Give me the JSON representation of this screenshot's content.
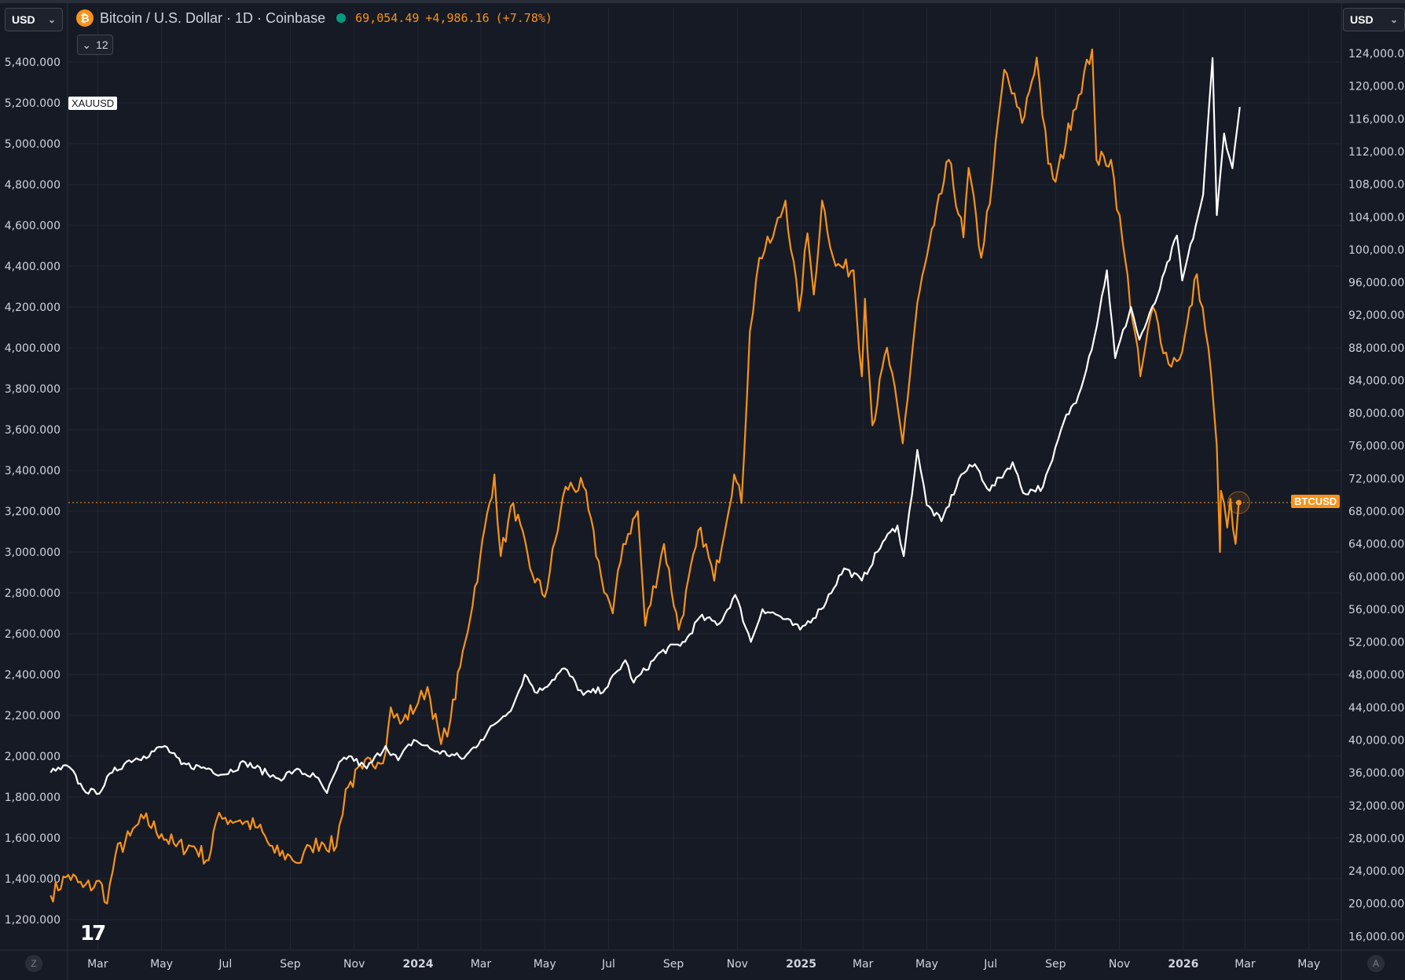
{
  "header": {
    "left_currency": "USD",
    "right_currency": "USD",
    "symbol_title": "Bitcoin / U.S. Dollar · 1D · Coinbase",
    "btc_glyph": "₿",
    "last_price": "69,054.49",
    "change": "+4,986.16",
    "change_pct": "(+7.78%)",
    "collapse_count": "12",
    "collapse_glyph": "⌄"
  },
  "corners": {
    "left": "Z",
    "right": "A"
  },
  "logo": "17",
  "colors": {
    "background": "#161a25",
    "grid": "#262a36",
    "btc": "#f7931a",
    "gold": "#ffffff",
    "axis_text": "#d1d4dc"
  },
  "chart_data": {
    "type": "line",
    "series": [
      {
        "name": "BTCUSD",
        "axis": "right",
        "color": "#f7931a",
        "points": [
          [
            "2023-01-15",
            21000
          ],
          [
            "2023-02-01",
            23500
          ],
          [
            "2023-02-15",
            22000
          ],
          [
            "2023-03-05",
            22400
          ],
          [
            "2023-03-10",
            20000
          ],
          [
            "2023-03-18",
            26000
          ],
          [
            "2023-04-01",
            28300
          ],
          [
            "2023-04-14",
            30400
          ],
          [
            "2023-05-01",
            28500
          ],
          [
            "2023-05-15",
            27000
          ],
          [
            "2023-06-01",
            27000
          ],
          [
            "2023-06-15",
            25300
          ],
          [
            "2023-06-22",
            30000
          ],
          [
            "2023-07-01",
            30500
          ],
          [
            "2023-07-15",
            30200
          ],
          [
            "2023-08-01",
            29300
          ],
          [
            "2023-08-17",
            26200
          ],
          [
            "2023-09-01",
            25800
          ],
          [
            "2023-09-11",
            25000
          ],
          [
            "2023-09-20",
            27000
          ],
          [
            "2023-10-01",
            27500
          ],
          [
            "2023-10-15",
            27000
          ],
          [
            "2023-10-24",
            34000
          ],
          [
            "2023-11-09",
            36500
          ],
          [
            "2023-12-01",
            38500
          ],
          [
            "2023-12-06",
            44000
          ],
          [
            "2023-12-15",
            42000
          ],
          [
            "2024-01-01",
            44500
          ],
          [
            "2024-01-10",
            46500
          ],
          [
            "2024-01-23",
            39500
          ],
          [
            "2024-02-01",
            42500
          ],
          [
            "2024-02-15",
            52000
          ],
          [
            "2024-02-29",
            62000
          ],
          [
            "2024-03-14",
            72500
          ],
          [
            "2024-03-20",
            62500
          ],
          [
            "2024-04-01",
            69000
          ],
          [
            "2024-04-17",
            61000
          ],
          [
            "2024-05-01",
            57500
          ],
          [
            "2024-05-21",
            71000
          ],
          [
            "2024-06-07",
            71000
          ],
          [
            "2024-06-24",
            60000
          ],
          [
            "2024-07-05",
            55500
          ],
          [
            "2024-07-15",
            64000
          ],
          [
            "2024-07-29",
            68000
          ],
          [
            "2024-08-05",
            54000
          ],
          [
            "2024-08-23",
            64000
          ],
          [
            "2024-09-06",
            53500
          ],
          [
            "2024-09-27",
            66000
          ],
          [
            "2024-10-10",
            59500
          ],
          [
            "2024-10-29",
            72500
          ],
          [
            "2024-11-05",
            69000
          ],
          [
            "2024-11-13",
            90000
          ],
          [
            "2024-11-22",
            99000
          ],
          [
            "2024-12-05",
            101500
          ],
          [
            "2024-12-17",
            106000
          ],
          [
            "2024-12-30",
            92500
          ],
          [
            "2025-01-07",
            102000
          ],
          [
            "2025-01-13",
            94500
          ],
          [
            "2025-01-21",
            106000
          ],
          [
            "2025-02-03",
            98000
          ],
          [
            "2025-02-20",
            97500
          ],
          [
            "2025-02-28",
            84500
          ],
          [
            "2025-03-03",
            94000
          ],
          [
            "2025-03-10",
            78500
          ],
          [
            "2025-03-24",
            88000
          ],
          [
            "2025-04-08",
            76300
          ],
          [
            "2025-04-22",
            93500
          ],
          [
            "2025-05-08",
            103000
          ],
          [
            "2025-05-22",
            111000
          ],
          [
            "2025-06-05",
            101500
          ],
          [
            "2025-06-10",
            110000
          ],
          [
            "2025-06-22",
            99000
          ],
          [
            "2025-07-03",
            109000
          ],
          [
            "2025-07-14",
            122000
          ],
          [
            "2025-07-31",
            115500
          ],
          [
            "2025-08-14",
            123500
          ],
          [
            "2025-08-25",
            110500
          ],
          [
            "2025-09-01",
            108300
          ],
          [
            "2025-09-18",
            117000
          ],
          [
            "2025-10-06",
            124500
          ],
          [
            "2025-10-10",
            111000
          ],
          [
            "2025-10-24",
            111000
          ],
          [
            "2025-11-04",
            101000
          ],
          [
            "2025-11-21",
            84500
          ],
          [
            "2025-12-03",
            93000
          ],
          [
            "2025-12-18",
            86000
          ],
          [
            "2025-12-31",
            87500
          ],
          [
            "2026-01-14",
            97000
          ],
          [
            "2026-01-25",
            88000
          ],
          [
            "2026-02-02",
            76000
          ],
          [
            "2026-02-05",
            63000
          ],
          [
            "2026-02-06",
            70500
          ],
          [
            "2026-02-12",
            66000
          ],
          [
            "2026-02-15",
            69500
          ],
          [
            "2026-02-20",
            64000
          ],
          [
            "2026-02-23",
            69054
          ]
        ]
      },
      {
        "name": "XAUUSD",
        "axis": "left",
        "color": "#ffffff",
        "points": [
          [
            "2023-01-15",
            1920
          ],
          [
            "2023-02-01",
            1950
          ],
          [
            "2023-02-15",
            1840
          ],
          [
            "2023-02-28",
            1815
          ],
          [
            "2023-03-15",
            1920
          ],
          [
            "2023-03-31",
            1980
          ],
          [
            "2023-04-14",
            2000
          ],
          [
            "2023-05-04",
            2050
          ],
          [
            "2023-05-20",
            1960
          ],
          [
            "2023-06-15",
            1940
          ],
          [
            "2023-06-29",
            1910
          ],
          [
            "2023-07-20",
            1970
          ],
          [
            "2023-08-10",
            1915
          ],
          [
            "2023-08-21",
            1890
          ],
          [
            "2023-09-05",
            1930
          ],
          [
            "2023-09-25",
            1900
          ],
          [
            "2023-10-06",
            1820
          ],
          [
            "2023-10-20",
            1980
          ],
          [
            "2023-10-27",
            2000
          ],
          [
            "2023-11-13",
            1940
          ],
          [
            "2023-12-01",
            2050
          ],
          [
            "2023-12-13",
            1980
          ],
          [
            "2023-12-28",
            2080
          ],
          [
            "2024-01-15",
            2030
          ],
          [
            "2024-02-14",
            1990
          ],
          [
            "2024-03-01",
            2080
          ],
          [
            "2024-03-15",
            2160
          ],
          [
            "2024-04-01",
            2250
          ],
          [
            "2024-04-12",
            2400
          ],
          [
            "2024-04-24",
            2310
          ],
          [
            "2024-05-20",
            2430
          ],
          [
            "2024-06-07",
            2300
          ],
          [
            "2024-06-28",
            2330
          ],
          [
            "2024-07-17",
            2470
          ],
          [
            "2024-07-25",
            2360
          ],
          [
            "2024-08-20",
            2510
          ],
          [
            "2024-09-12",
            2560
          ],
          [
            "2024-09-26",
            2680
          ],
          [
            "2024-10-15",
            2650
          ],
          [
            "2024-10-30",
            2790
          ],
          [
            "2024-11-14",
            2560
          ],
          [
            "2024-11-25",
            2720
          ],
          [
            "2024-12-10",
            2690
          ],
          [
            "2024-12-31",
            2620
          ],
          [
            "2025-01-20",
            2720
          ],
          [
            "2025-02-11",
            2920
          ],
          [
            "2025-02-28",
            2860
          ],
          [
            "2025-03-20",
            3050
          ],
          [
            "2025-04-03",
            3130
          ],
          [
            "2025-04-09",
            2980
          ],
          [
            "2025-04-22",
            3500
          ],
          [
            "2025-05-01",
            3230
          ],
          [
            "2025-05-15",
            3150
          ],
          [
            "2025-06-03",
            3380
          ],
          [
            "2025-06-16",
            3430
          ],
          [
            "2025-06-30",
            3300
          ],
          [
            "2025-07-22",
            3440
          ],
          [
            "2025-08-01",
            3290
          ],
          [
            "2025-08-20",
            3320
          ],
          [
            "2025-08-29",
            3450
          ],
          [
            "2025-09-09",
            3640
          ],
          [
            "2025-09-23",
            3770
          ],
          [
            "2025-10-08",
            4050
          ],
          [
            "2025-10-20",
            4380
          ],
          [
            "2025-10-28",
            3950
          ],
          [
            "2025-11-12",
            4200
          ],
          [
            "2025-11-20",
            4040
          ],
          [
            "2025-12-05",
            4220
          ],
          [
            "2025-12-26",
            4550
          ],
          [
            "2025-12-31",
            4330
          ],
          [
            "2026-01-13",
            4600
          ],
          [
            "2026-01-20",
            4750
          ],
          [
            "2026-01-29",
            5420
          ],
          [
            "2026-02-02",
            4650
          ],
          [
            "2026-02-09",
            5050
          ],
          [
            "2026-02-17",
            4880
          ],
          [
            "2026-02-24",
            5180
          ]
        ]
      }
    ],
    "left_axis": {
      "ylim": [
        1050,
        5550
      ],
      "ticks": [
        "5,400.000",
        "5,200.000",
        "5,000.000",
        "4,800.000",
        "4,600.000",
        "4,400.000",
        "4,200.000",
        "4,000.000",
        "3,800.000",
        "3,600.000",
        "3,400.000",
        "3,200.000",
        "3,000.000",
        "2,800.000",
        "2,600.000",
        "2,400.000",
        "2,200.000",
        "2,000.000",
        "1,800.000",
        "1,600.000",
        "1,400.000",
        "1,200.000"
      ]
    },
    "right_axis": {
      "ylim": [
        14300,
        126700
      ],
      "ticks": [
        "124,000.00",
        "120,000.00",
        "116,000.00",
        "112,000.00",
        "108,000.00",
        "104,000.00",
        "100,000.00",
        "96,000.00",
        "92,000.00",
        "88,000.00",
        "84,000.00",
        "80,000.00",
        "76,000.00",
        "72,000.00",
        "68,000.00",
        "64,000.00",
        "60,000.00",
        "56,000.00",
        "52,000.00",
        "48,000.00",
        "44,000.00",
        "40,000.00",
        "36,000.00",
        "32,000.00",
        "28,000.00",
        "24,000.00",
        "20,000.00",
        "16,000.00"
      ]
    },
    "x_axis": {
      "range": [
        "2023-02-01",
        "2026-06-01"
      ],
      "ticks": [
        [
          "2023-03-01",
          "Mar"
        ],
        [
          "2023-05-01",
          "May"
        ],
        [
          "2023-07-01",
          "Jul"
        ],
        [
          "2023-09-01",
          "Sep"
        ],
        [
          "2023-11-01",
          "Nov"
        ],
        [
          "2024-01-01",
          "2024"
        ],
        [
          "2024-03-01",
          "Mar"
        ],
        [
          "2024-05-01",
          "May"
        ],
        [
          "2024-07-01",
          "Jul"
        ],
        [
          "2024-09-01",
          "Sep"
        ],
        [
          "2024-11-01",
          "Nov"
        ],
        [
          "2025-01-01",
          "2025"
        ],
        [
          "2025-03-01",
          "Mar"
        ],
        [
          "2025-05-01",
          "May"
        ],
        [
          "2025-07-01",
          "Jul"
        ],
        [
          "2025-09-01",
          "Sep"
        ],
        [
          "2025-11-01",
          "Nov"
        ],
        [
          "2026-01-01",
          "2026"
        ],
        [
          "2026-03-01",
          "Mar"
        ],
        [
          "2026-05-01",
          "May"
        ]
      ]
    },
    "price_line": {
      "series": "BTCUSD",
      "value": 69054,
      "label": "BTCUSD"
    },
    "series_label": "XAUUSD",
    "grid": true
  }
}
